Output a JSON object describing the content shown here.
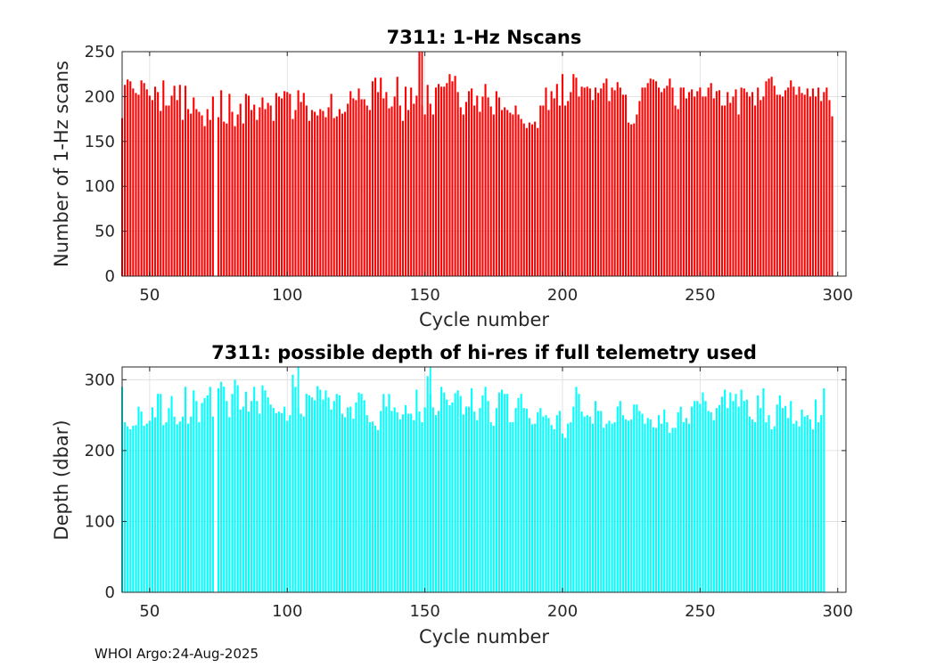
{
  "footer": "WHOI Argo:24-Aug-2025",
  "colors": {
    "top_bars": "#ff0000",
    "bottom_bars": "#00ffff",
    "grid": "#dcdcdc",
    "axis": "#262626"
  },
  "chart_data": [
    {
      "type": "bar",
      "title": "7311: 1-Hz Nscans",
      "xlabel": "Cycle number",
      "ylabel": "Number of 1-Hz scans",
      "xlim": [
        40,
        303
      ],
      "ylim": [
        0,
        250
      ],
      "xticks": [
        50,
        100,
        150,
        200,
        250,
        300
      ],
      "yticks": [
        0,
        50,
        100,
        150,
        200,
        250
      ],
      "grid": true,
      "x_start": 40,
      "missing": [
        76
      ],
      "values": [
        176,
        213,
        219,
        217,
        209,
        204,
        202,
        218,
        215,
        208,
        201,
        196,
        211,
        205,
        184,
        218,
        190,
        190,
        201,
        212,
        196,
        213,
        174,
        212,
        186,
        181,
        199,
        186,
        183,
        179,
        167,
        186,
        174,
        200,
        0,
        177,
        207,
        172,
        170,
        203,
        183,
        167,
        180,
        192,
        170,
        203,
        201,
        185,
        191,
        174,
        188,
        199,
        186,
        193,
        190,
        173,
        204,
        200,
        198,
        206,
        205,
        203,
        175,
        185,
        207,
        194,
        204,
        190,
        173,
        185,
        183,
        179,
        186,
        184,
        177,
        188,
        203,
        176,
        178,
        186,
        181,
        183,
        192,
        206,
        198,
        196,
        209,
        197,
        197,
        190,
        185,
        217,
        221,
        205,
        221,
        198,
        205,
        187,
        189,
        200,
        222,
        190,
        173,
        211,
        185,
        210,
        192,
        201,
        250,
        190,
        180,
        213,
        192,
        180,
        210,
        214,
        211,
        211,
        215,
        225,
        217,
        223,
        205,
        188,
        180,
        194,
        206,
        209,
        190,
        201,
        183,
        200,
        214,
        199,
        189,
        180,
        206,
        199,
        185,
        188,
        185,
        182,
        180,
        190,
        180,
        175,
        170,
        165,
        171,
        169,
        172,
        165,
        190,
        190,
        210,
        185,
        206,
        198,
        214,
        190,
        225,
        190,
        195,
        205,
        225,
        221,
        200,
        211,
        210,
        211,
        209,
        196,
        210,
        204,
        209,
        215,
        220,
        195,
        210,
        207,
        216,
        210,
        202,
        202,
        171,
        169,
        170,
        180,
        195,
        210,
        210,
        215,
        220,
        219,
        217,
        210,
        205,
        209,
        212,
        220,
        210,
        190,
        186,
        210,
        210,
        198,
        205,
        208,
        200,
        206,
        210,
        200,
        200,
        210,
        215,
        198,
        206,
        207,
        190,
        190,
        205,
        193,
        200,
        208,
        180,
        210,
        209,
        205,
        200,
        205,
        190,
        210,
        196,
        200,
        217,
        220,
        222,
        212,
        202,
        202,
        200,
        207,
        210,
        218,
        211,
        202,
        211,
        204,
        202,
        209,
        200,
        209,
        200,
        210,
        195,
        205,
        210,
        196,
        178
      ],
      "spikes": [
        {
          "x": 149,
          "value": 250
        }
      ]
    },
    {
      "type": "bar",
      "title": "7311: possible depth of hi-res if full telemetry used",
      "xlabel": "Cycle number",
      "ylabel": "Depth (dbar)",
      "xlim": [
        40,
        303
      ],
      "ylim": [
        0,
        318
      ],
      "xticks": [
        50,
        100,
        150,
        200,
        250,
        300
      ],
      "yticks": [
        0,
        100,
        200,
        300
      ],
      "grid": true,
      "x_start": 40,
      "missing": [
        76
      ],
      "values": [
        290,
        240,
        234,
        230,
        235,
        236,
        262,
        255,
        235,
        238,
        242,
        261,
        247,
        280,
        280,
        236,
        240,
        260,
        277,
        248,
        237,
        241,
        248,
        290,
        238,
        248,
        285,
        270,
        240,
        267,
        274,
        278,
        290,
        248,
        0,
        288,
        297,
        290,
        270,
        247,
        280,
        300,
        292,
        258,
        262,
        283,
        255,
        270,
        290,
        270,
        252,
        292,
        285,
        275,
        265,
        260,
        253,
        255,
        253,
        262,
        242,
        250,
        307,
        290,
        261,
        252,
        248,
        280,
        278,
        275,
        271,
        291,
        286,
        272,
        285,
        275,
        258,
        270,
        280,
        278,
        252,
        247,
        261,
        262,
        245,
        268,
        282,
        280,
        271,
        250,
        240,
        241,
        235,
        229,
        256,
        280,
        262,
        280,
        256,
        261,
        254,
        244,
        251,
        264,
        252,
        252,
        243,
        286,
        255,
        240,
        261,
        305,
        280,
        261,
        250,
        256,
        290,
        282,
        272,
        264,
        268,
        281,
        285,
        277,
        251,
        262,
        262,
        288,
        255,
        243,
        260,
        278,
        290,
        270,
        240,
        235,
        260,
        282,
        286,
        280,
        280,
        240,
        240,
        260,
        274,
        280,
        260,
        259,
        246,
        237,
        238,
        254,
        260,
        248,
        250,
        246,
        236,
        230,
        250,
        256,
        224,
        218,
        238,
        240,
        262,
        290,
        280,
        255,
        248,
        250,
        248,
        238,
        270,
        256,
        256,
        232,
        238,
        242,
        238,
        240,
        262,
        270,
        250,
        244,
        242,
        244,
        265,
        265,
        256,
        252,
        238,
        246,
        244,
        233,
        232,
        250,
        238,
        258,
        240,
        225,
        232,
        232,
        254,
        262,
        240,
        246,
        238,
        262,
        270,
        270,
        266,
        282,
        270,
        256,
        254,
        243,
        260,
        264,
        276,
        286,
        260,
        282,
        270,
        280,
        262,
        286,
        270,
        272,
        248,
        244,
        240,
        278,
        260,
        288,
        240,
        250,
        230,
        234,
        265,
        278,
        260,
        263,
        246,
        270,
        238,
        242,
        234,
        258,
        248,
        250,
        244,
        230,
        272,
        240,
        250,
        288
      ],
      "spikes": [
        {
          "x": 104,
          "value": 318
        },
        {
          "x": 152,
          "value": 318
        }
      ]
    }
  ]
}
